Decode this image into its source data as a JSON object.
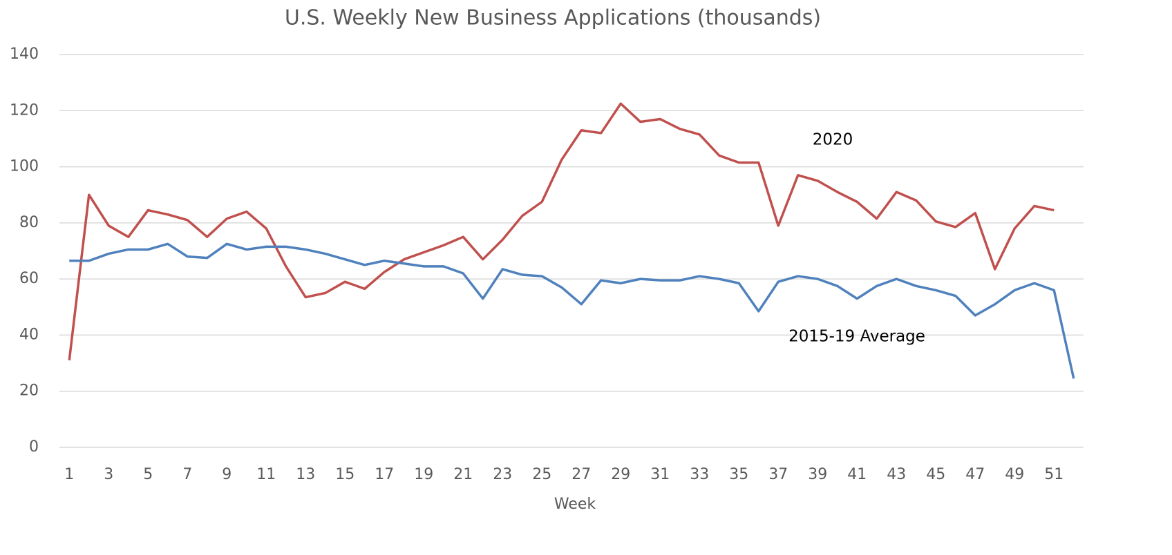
{
  "chart_data": {
    "type": "line",
    "title": "U.S. Weekly New Business Applications (thousands)",
    "x_label": "Week",
    "x": [
      1,
      2,
      3,
      4,
      5,
      6,
      7,
      8,
      9,
      10,
      11,
      12,
      13,
      14,
      15,
      16,
      17,
      18,
      19,
      20,
      21,
      22,
      23,
      24,
      25,
      26,
      27,
      28,
      29,
      30,
      31,
      32,
      33,
      34,
      35,
      36,
      37,
      38,
      39,
      40,
      41,
      42,
      43,
      44,
      45,
      46,
      47,
      48,
      49,
      50,
      51,
      52
    ],
    "xlim": [
      0.5,
      52.5
    ],
    "xticks": [
      1,
      3,
      5,
      7,
      9,
      11,
      13,
      15,
      17,
      19,
      21,
      23,
      25,
      27,
      29,
      31,
      33,
      35,
      37,
      39,
      41,
      43,
      45,
      47,
      49,
      51
    ],
    "ylim": [
      0,
      140
    ],
    "yticks": [
      0,
      20,
      40,
      60,
      80,
      100,
      120,
      140
    ],
    "grid": true,
    "series": [
      {
        "name": "2020",
        "color": "#c0504d",
        "values": [
          31,
          90,
          79,
          75,
          84.5,
          83,
          81,
          75,
          81.5,
          84,
          78,
          64.5,
          53.5,
          55,
          59,
          56.5,
          62.5,
          67,
          69.5,
          72,
          75,
          67,
          74,
          82.5,
          87.5,
          102.5,
          113,
          112,
          122.5,
          116,
          117,
          113.5,
          111.5,
          104,
          101.5,
          101.5,
          79,
          97,
          95,
          91,
          87.5,
          81.5,
          91,
          88,
          80.5,
          78.5,
          83.5,
          63.5,
          78,
          86,
          84.5,
          null
        ]
      },
      {
        "name": "2015-19 Average",
        "color": "#4f81bd",
        "values": [
          66.5,
          66.5,
          69,
          70.5,
          70.5,
          72.5,
          68,
          67.5,
          72.5,
          70.5,
          71.5,
          71.5,
          70.5,
          69,
          67,
          65,
          66.5,
          65.5,
          64.5,
          64.5,
          62,
          53,
          63.5,
          61.5,
          61,
          57,
          51,
          59.5,
          58.5,
          60,
          59.5,
          59.5,
          61,
          60,
          58.5,
          48.5,
          59,
          61,
          60,
          57.5,
          53,
          57.5,
          60,
          57.5,
          56,
          54,
          47,
          51,
          56,
          58.5,
          56,
          24.5
        ]
      }
    ]
  }
}
